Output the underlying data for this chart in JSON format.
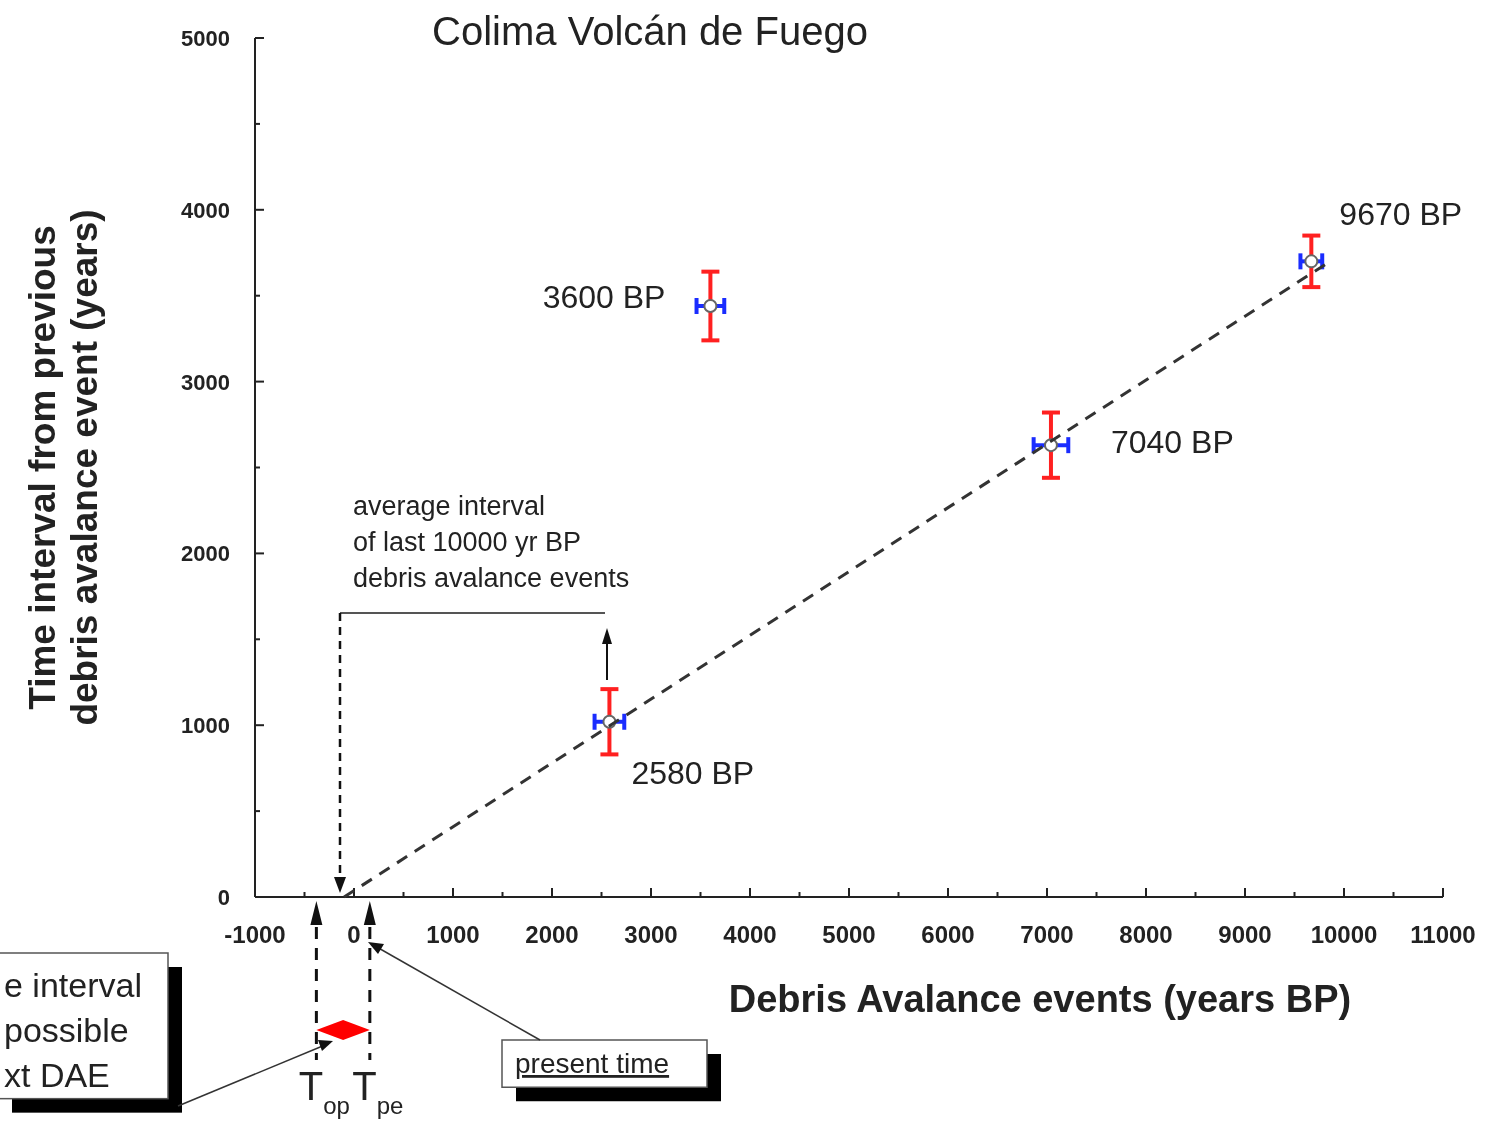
{
  "chart_data": {
    "type": "scatter",
    "title": "Colima Volcán de Fuego",
    "xlabel": "Debris Avalance events (years BP)",
    "ylabel": "Time interval from previous debris avalance event (years)",
    "xlim": [
      -1000,
      11000
    ],
    "ylim": [
      0,
      5000
    ],
    "xticks": [
      -1000,
      {
        "value": -500,
        "label": null
      },
      0,
      {
        "value": 500,
        "label": null
      },
      1000,
      {
        "value": 1500,
        "label": null
      },
      2000,
      {
        "value": 2500,
        "label": null
      },
      3000,
      {
        "value": 3500,
        "label": null
      },
      4000,
      {
        "value": 4500,
        "label": null
      },
      5000,
      {
        "value": 5500,
        "label": null
      },
      6000,
      {
        "value": 6500,
        "label": null
      },
      7000,
      {
        "value": 7500,
        "label": null
      },
      8000,
      {
        "value": 8500,
        "label": null
      },
      9000,
      {
        "value": 9500,
        "label": null
      },
      10000,
      {
        "value": 10500,
        "label": null
      },
      11000
    ],
    "yticks": [
      0,
      {
        "value": 500,
        "label": null
      },
      1000,
      {
        "value": 1500,
        "label": null
      },
      2000,
      {
        "value": 2500,
        "label": null
      },
      3000,
      {
        "value": 3500,
        "label": null
      },
      4000,
      {
        "value": 4500,
        "label": null
      },
      5000
    ],
    "marker": "circle",
    "series": [
      {
        "color": "#666666",
        "x": [
          2580,
          3600,
          7040,
          9670
        ],
        "values": [
          1020,
          3440,
          2630,
          3700
        ],
        "errors": [
          190,
          200,
          190,
          150
        ],
        "xerrors": [
          150,
          140,
          175,
          110
        ]
      },
      {
        "type": "line",
        "color": "#333333",
        "line_style": "dashed",
        "marker": "none",
        "x": [
          -100,
          9860
        ],
        "values": [
          0,
          3700
        ]
      }
    ],
    "ref_lines": [
      {
        "axis": "x",
        "value": -380,
        "label": "T$_{op}$",
        "line_style": "dashed"
      },
      {
        "axis": "x",
        "value": 160,
        "label": "T$_{pe}$",
        "line_style": "dashed"
      }
    ],
    "annotations": [
      {
        "text": "2580 BP",
        "x": 2580,
        "y": 1020
      },
      {
        "text": "3600 BP",
        "x": 3600,
        "y": 3440
      },
      {
        "text": "7040 BP",
        "x": 7040,
        "y": 2630
      },
      {
        "text": "9670 BP",
        "x": 9670,
        "y": 3700
      },
      "average interval\nof last 10000 yr BP\ndebris avalance events",
      "present time",
      "e interval\npossible\nxt DAE"
    ]
  }
}
